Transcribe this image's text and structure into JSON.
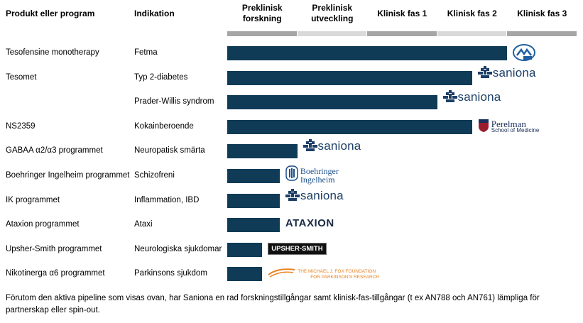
{
  "header": {
    "program_label": "Produkt eller program",
    "indication_label": "Indikation",
    "phases": [
      "Preklinisk\nforskning",
      "Preklinisk\nutveckling",
      "Klinisk fas 1",
      "Klinisk fas 2",
      "Klinisk fas 3"
    ]
  },
  "colors": {
    "bar": "#0f3b57",
    "phase_dark": "#a6a6a6",
    "phase_light": "#d9d9d9",
    "saniona": "#1d3f66",
    "medix": "#1f5fa0",
    "perelman": "#1a2f5a",
    "boehringer": "#1d4f8a",
    "mjff": "#e8821e"
  },
  "chart_data": {
    "type": "bar",
    "orientation": "horizontal",
    "phases": [
      "Preklinisk forskning",
      "Preklinisk utveckling",
      "Klinisk fas 1",
      "Klinisk fas 2",
      "Klinisk fas 3"
    ],
    "xlim": [
      0,
      5
    ],
    "rows": [
      {
        "program": "Tesofensine monotherapy",
        "indication": "Fetma",
        "progress": 4.0,
        "partner": "Medix",
        "logo_icon": "medix-logo-icon"
      },
      {
        "program": "Tesomet",
        "indication": "Typ 2-diabetes",
        "progress": 3.5,
        "partner": "saniona",
        "logo_icon": "saniona-logo-icon"
      },
      {
        "program": "",
        "indication": "Prader-Willis syndrom",
        "progress": 3.0,
        "partner": "saniona",
        "logo_icon": "saniona-logo-icon"
      },
      {
        "program": "NS2359",
        "indication": "Kokainberoende",
        "progress": 3.5,
        "partner": "Perelman",
        "partner_sub": "School of Medicine",
        "logo_icon": "perelman-logo-icon"
      },
      {
        "program": "GABAA α2/α3 programmet",
        "indication": "Neuropatisk smärta",
        "progress": 1.0,
        "partner": "saniona",
        "logo_icon": "saniona-logo-icon"
      },
      {
        "program": "Boehringer Ingelheim programmet",
        "indication": "Schizofreni",
        "progress": 0.75,
        "partner": "Boehringer",
        "partner_sub": "Ingelheim",
        "logo_icon": "boehringer-logo-icon"
      },
      {
        "program": "IK programmet",
        "indication": "Inflammation, IBD",
        "progress": 0.75,
        "partner": "saniona",
        "logo_icon": "saniona-logo-icon"
      },
      {
        "program": "Ataxion programmet",
        "indication": "Ataxi",
        "progress": 0.75,
        "partner": "ATAXION",
        "logo_icon": "ataxion-logo-icon"
      },
      {
        "program": "Upsher-Smith programmet",
        "indication": "Neurologiska sjukdomar",
        "progress": 0.5,
        "partner": "UPSHER-SMITH",
        "logo_icon": "upsher-smith-logo-icon"
      },
      {
        "program": "Nikotinerga α6 programmet",
        "indication": "Parkinsons sjukdom",
        "progress": 0.5,
        "partner": "THE MICHAEL J. FOX FOUNDATION",
        "partner_sub": "FOR PARKINSON'S RESEARCH",
        "logo_icon": "michael-j-fox-foundation-logo-icon"
      }
    ]
  },
  "footer": "Förutom den aktiva pipeline som visas ovan, har Saniona en rad forskningstillgångar samt klinisk-fas-tillgångar (t ex AN788 och AN761) lämpliga för partnerskap eller spin-out."
}
